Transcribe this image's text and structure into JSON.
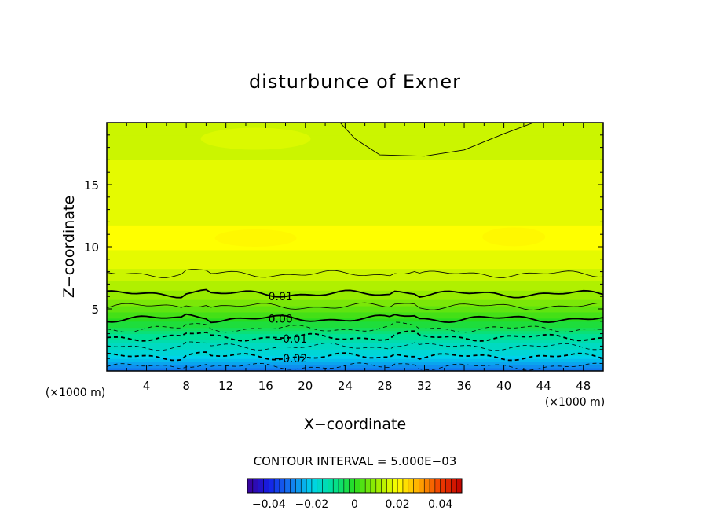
{
  "chart_data": {
    "type": "heatmap",
    "title": "disturbunce of Exner",
    "xlabel": "X−coordinate",
    "ylabel": "Z−coordinate",
    "x_unit": "(×1000 m)",
    "z_unit": "(×1000 m)",
    "xlim": [
      0,
      50
    ],
    "ylim": [
      0,
      20
    ],
    "xticks": [
      4,
      8,
      12,
      16,
      20,
      24,
      28,
      32,
      36,
      40,
      44,
      48
    ],
    "yticks": [
      5,
      10,
      15
    ],
    "contour_interval_text": "CONTOUR INTERVAL = 5.000E−03",
    "contour_labels": [
      {
        "text": "0.01",
        "level": 0.01,
        "x": 17.5,
        "z": 6.0
      },
      {
        "text": "0.00",
        "level": 0.0,
        "x": 17.5,
        "z": 4.2
      },
      {
        "text": "−0.01",
        "level": -0.01,
        "x": 18.5,
        "z": 2.6
      },
      {
        "text": "−0.02",
        "level": -0.02,
        "x": 18.5,
        "z": 1.0
      }
    ],
    "contour_levels": [
      {
        "level": -0.025,
        "z_mean": 0.35,
        "style": "dashed"
      },
      {
        "level": -0.02,
        "z_mean": 1.15,
        "style": "dashed-bold"
      },
      {
        "level": -0.015,
        "z_mean": 1.95,
        "style": "dashed"
      },
      {
        "level": -0.01,
        "z_mean": 2.7,
        "style": "dashed-bold"
      },
      {
        "level": -0.005,
        "z_mean": 3.4,
        "style": "dashed"
      },
      {
        "level": 0.0,
        "z_mean": 4.2,
        "style": "solid-bold"
      },
      {
        "level": 0.005,
        "z_mean": 5.2,
        "style": "solid"
      },
      {
        "level": 0.01,
        "z_mean": 6.2,
        "style": "solid-bold"
      },
      {
        "level": 0.015,
        "z_mean": 7.8,
        "style": "solid"
      }
    ],
    "colorbar": {
      "min": -0.05,
      "max": 0.05,
      "ticks": [
        -0.04,
        -0.02,
        0,
        0.02,
        0.04
      ],
      "tick_labels": [
        "−0.04",
        "−0.02",
        "0",
        "0.02",
        "0.04"
      ]
    },
    "field_profile_vs_z": [
      {
        "z": 0,
        "value": -0.03
      },
      {
        "z": 1,
        "value": -0.021
      },
      {
        "z": 2,
        "value": -0.015
      },
      {
        "z": 3,
        "value": -0.008
      },
      {
        "z": 4,
        "value": -0.001
      },
      {
        "z": 5,
        "value": 0.005
      },
      {
        "z": 6,
        "value": 0.0095
      },
      {
        "z": 7,
        "value": 0.013
      },
      {
        "z": 8,
        "value": 0.0155
      },
      {
        "z": 9,
        "value": 0.0175
      },
      {
        "z": 10,
        "value": 0.019
      },
      {
        "z": 11,
        "value": 0.0195
      },
      {
        "z": 12,
        "value": 0.0185
      },
      {
        "z": 14,
        "value": 0.0175
      },
      {
        "z": 16,
        "value": 0.0165
      },
      {
        "z": 18,
        "value": 0.016
      },
      {
        "z": 20,
        "value": 0.0155
      }
    ]
  }
}
